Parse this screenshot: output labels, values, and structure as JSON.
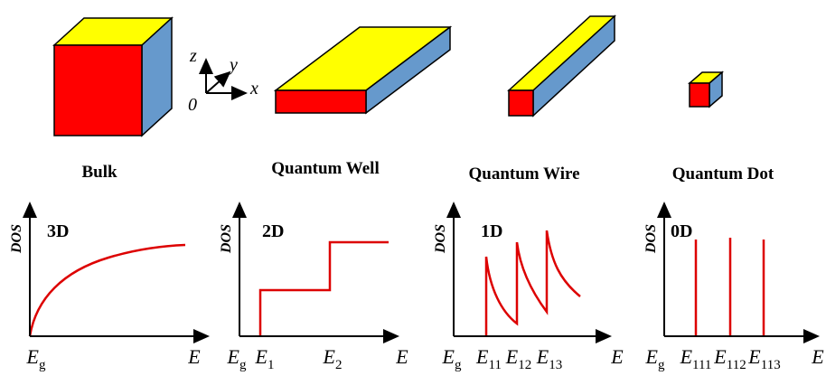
{
  "axes_icon": {
    "z": "z",
    "y": "y",
    "x": "x",
    "origin": "0"
  },
  "structures": [
    {
      "label": "Bulk"
    },
    {
      "label": "Quantum Well"
    },
    {
      "label": "Quantum Wire"
    },
    {
      "label": "Quantum Dot"
    }
  ],
  "panels": [
    {
      "y_label": "DOS",
      "dimension": "3D",
      "x_labels": [
        {
          "main": "E",
          "sub": "g"
        }
      ],
      "x_axis_label": "E"
    },
    {
      "y_label": "DOS",
      "dimension": "2D",
      "x_labels": [
        {
          "main": "E",
          "sub": "g"
        },
        {
          "main": "E",
          "sub": "1"
        },
        {
          "main": "E",
          "sub": "2"
        }
      ],
      "x_axis_label": "E"
    },
    {
      "y_label": "DOS",
      "dimension": "1D",
      "x_labels": [
        {
          "main": "E",
          "sub": "g"
        },
        {
          "main": "E",
          "sub": "11"
        },
        {
          "main": "E",
          "sub": "12"
        },
        {
          "main": "E",
          "sub": "13"
        }
      ],
      "x_axis_label": "E"
    },
    {
      "y_label": "DOS",
      "dimension": "0D",
      "x_labels": [
        {
          "main": "E",
          "sub": "g"
        },
        {
          "main": "E",
          "sub": "111"
        },
        {
          "main": "E",
          "sub": "112"
        },
        {
          "main": "E",
          "sub": "113"
        }
      ],
      "x_axis_label": "E"
    }
  ]
}
